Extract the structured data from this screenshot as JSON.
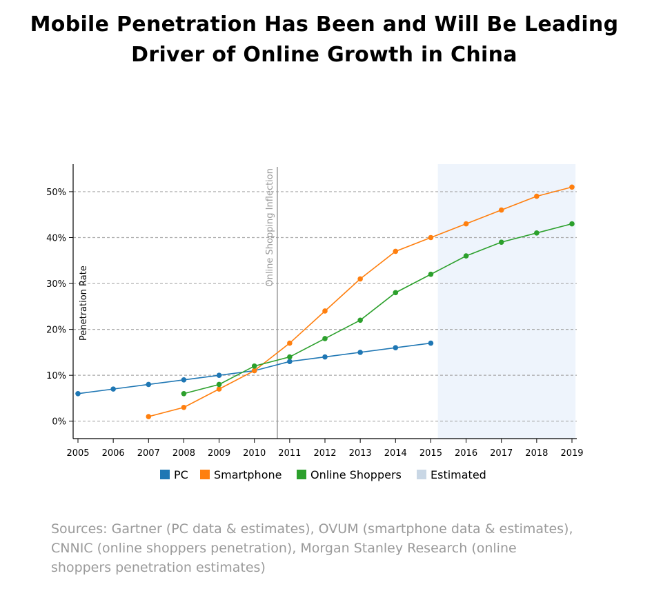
{
  "title": {
    "line1": "Mobile Penetration Has Been and Will Be Leading",
    "line2": "Driver of Online Growth in China"
  },
  "sources": {
    "line1": "Sources: Gartner (PC data & estimates), OVUM (smartphone data & estimates),",
    "line2": "CNNIC (online shoppers penetration), Morgan Stanley Research (online",
    "line3": "shoppers penetration estimates)"
  },
  "colors": {
    "pc": "#1f77b4",
    "smartphone": "#ff7f0e",
    "online_shoppers": "#2ca02c",
    "estimated": "#c9d7e5",
    "estimated_band": "#eef4fc"
  },
  "chart_data": {
    "type": "line",
    "title": "",
    "xlabel": "",
    "ylabel": "Penetration Rate",
    "x": [
      2005,
      2006,
      2007,
      2008,
      2009,
      2010,
      2011,
      2012,
      2013,
      2014,
      2015,
      2016,
      2017,
      2018,
      2019
    ],
    "ylim": [
      -0.038,
      0.56
    ],
    "yticks": [
      0,
      0.1,
      0.2,
      0.3,
      0.4,
      0.5
    ],
    "ytick_labels": [
      "0%",
      "10%",
      "20%",
      "30%",
      "40%",
      "50%"
    ],
    "grid": "horizontal dashed",
    "series": [
      {
        "name": "PC",
        "color": "#1f77b4",
        "x": [
          2005,
          2006,
          2007,
          2008,
          2009,
          2010,
          2011,
          2012,
          2013,
          2014,
          2015
        ],
        "values": [
          0.06,
          0.07,
          0.08,
          0.09,
          0.1,
          0.11,
          0.13,
          0.14,
          0.15,
          0.16,
          0.17
        ]
      },
      {
        "name": "Smartphone",
        "color": "#ff7f0e",
        "x": [
          2007,
          2008,
          2009,
          2010,
          2011,
          2012,
          2013,
          2014,
          2015,
          2016,
          2017,
          2018,
          2019
        ],
        "values": [
          0.01,
          0.03,
          0.07,
          0.11,
          0.17,
          0.24,
          0.31,
          0.37,
          0.4,
          0.43,
          0.46,
          0.49,
          0.51
        ]
      },
      {
        "name": "Online Shoppers",
        "color": "#2ca02c",
        "x": [
          2008,
          2009,
          2010,
          2011,
          2012,
          2013,
          2014,
          2015,
          2016,
          2017,
          2018,
          2019
        ],
        "values": [
          0.06,
          0.08,
          0.12,
          0.14,
          0.18,
          0.22,
          0.28,
          0.32,
          0.36,
          0.39,
          0.41,
          0.43
        ]
      }
    ],
    "estimated_range": [
      2015.2,
      2019.1
    ],
    "estimated_label": "Estimated",
    "annotation": {
      "text": "Online Shopping Inflection",
      "x": 2010.65
    },
    "legend": {
      "position": "bottom",
      "items": [
        "PC",
        "Smartphone",
        "Online Shoppers",
        "Estimated"
      ]
    }
  }
}
